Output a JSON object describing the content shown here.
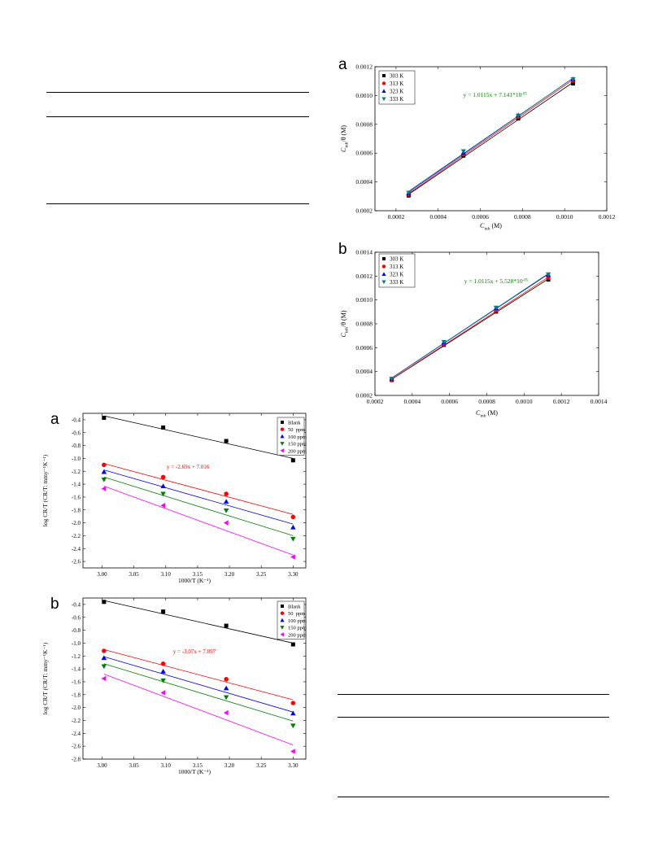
{
  "chart_data": [
    {
      "panel": "a",
      "type": "scatter",
      "xlabel": "C_inh (M)",
      "ylabel": "C_inh/θ (M)",
      "xlim": [
        0.0001,
        0.0012
      ],
      "ylim": [
        0.0002,
        0.0012
      ],
      "x_ticks": [
        "0.0002",
        "0.0004",
        "0.0006",
        "0.0008",
        "0.0010",
        "0.0012"
      ],
      "y_ticks": [
        "0.0002",
        "0.0004",
        "0.0006",
        "0.0008",
        "0.0010",
        "0.0012"
      ],
      "legend_position": "top-left",
      "fit": true,
      "x": [
        0.00026,
        0.00052,
        0.00078,
        0.00104
      ],
      "series": [
        {
          "name": "303 K",
          "marker": "square",
          "color": "#000000",
          "values": [
            0.000305,
            0.000582,
            0.00084,
            0.001083
          ]
        },
        {
          "name": "313 K",
          "marker": "circle",
          "color": "#ff0000",
          "values": [
            0.000312,
            0.000592,
            0.000852,
            0.001103
          ]
        },
        {
          "name": "323 K",
          "marker": "triangle-up",
          "color": "#0000ff",
          "values": [
            0.00032,
            0.000603,
            0.000864,
            0.001113
          ]
        },
        {
          "name": "333 K",
          "marker": "triangle-down",
          "color": "#008080",
          "values": [
            0.000325,
            0.000613,
            0.00086,
            0.001114
          ]
        }
      ],
      "annotations": [
        {
          "text": "y = 1.0115x + 7.141*10",
          "sup": "-05",
          "color": "#008000",
          "x": 0.00067,
          "y": 0.00099
        }
      ]
    },
    {
      "panel": "b",
      "type": "scatter",
      "xlabel": "C_inh (M)",
      "ylabel": "C_inh/θ (M)",
      "xlim": [
        0.0002,
        0.0014
      ],
      "ylim": [
        0.0002,
        0.0014
      ],
      "x_ticks": [
        "0.0002",
        "0.0004",
        "0.0006",
        "0.0008",
        "0.0010",
        "0.0012",
        "0.0014"
      ],
      "y_ticks": [
        "0.0002",
        "0.0004",
        "0.0006",
        "0.0008",
        "0.0010",
        "0.0012",
        "0.0014"
      ],
      "legend_position": "top-left",
      "fit": true,
      "x": [
        0.00029,
        0.00057,
        0.00085,
        0.00113
      ],
      "series": [
        {
          "name": "303 K",
          "marker": "square",
          "color": "#000000",
          "values": [
            0.000328,
            0.000623,
            0.000902,
            0.00117
          ]
        },
        {
          "name": "313 K",
          "marker": "circle",
          "color": "#ff0000",
          "values": [
            0.00033,
            0.00063,
            0.00091,
            0.001185
          ]
        },
        {
          "name": "323 K",
          "marker": "triangle-up",
          "color": "#0000ff",
          "values": [
            0.000338,
            0.000645,
            0.000932,
            0.00121
          ]
        },
        {
          "name": "333 K",
          "marker": "triangle-down",
          "color": "#008080",
          "values": [
            0.00034,
            0.000647,
            0.000935,
            0.001215
          ]
        }
      ],
      "annotations": [
        {
          "text": "y = 1.0115x + 5.528*10",
          "sup": "-05",
          "color": "#008000",
          "x": 0.00085,
          "y": 0.00114
        }
      ]
    },
    {
      "panel": "a",
      "type": "scatter",
      "xlabel": "1000/T (K⁻¹)",
      "ylabel": "log CR/T (CR/T: mmy⁻¹K⁻¹)",
      "xlim": [
        2.97,
        3.32
      ],
      "ylim": [
        -2.7,
        -0.3
      ],
      "x_ticks": [
        "3.00",
        "3.05",
        "3.10",
        "3.15",
        "3.20",
        "3.25",
        "3.30"
      ],
      "y_ticks": [
        "-0.4",
        "-0.6",
        "-0.8",
        "-1.0",
        "-1.2",
        "-1.4",
        "-1.6",
        "-1.8",
        "-2.0",
        "-2.2",
        "-2.4",
        "-2.6"
      ],
      "legend_position": "top-right",
      "fit": true,
      "x": [
        3.003,
        3.096,
        3.195,
        3.3
      ],
      "series": [
        {
          "name": "Blank",
          "marker": "square",
          "color": "#000000",
          "values": [
            -0.37,
            -0.52,
            -0.73,
            -1.03
          ],
          "fit": [
            -0.34,
            -1.0
          ]
        },
        {
          "name": "50  ppm",
          "marker": "circle",
          "color": "#ff0000",
          "values": [
            -1.1,
            -1.29,
            -1.55,
            -1.91
          ],
          "fit": [
            -1.08,
            -1.87
          ]
        },
        {
          "name": "100 ppm",
          "marker": "triangle-up",
          "color": "#0000ff",
          "values": [
            -1.21,
            -1.43,
            -1.67,
            -2.07
          ],
          "fit": [
            -1.18,
            -2.02
          ]
        },
        {
          "name": "150 ppm",
          "marker": "triangle-down",
          "color": "#008000",
          "values": [
            -1.33,
            -1.55,
            -1.81,
            -2.25
          ],
          "fit": [
            -1.29,
            -2.2
          ]
        },
        {
          "name": "200 ppm",
          "marker": "triangle-left",
          "color": "#ff00ff",
          "values": [
            -1.47,
            -1.73,
            -2.0,
            -2.53
          ],
          "fit": [
            -1.43,
            -2.5
          ]
        }
      ],
      "annotations": [
        {
          "text": "y = -2.69x + 7.016",
          "color": "#ff0000",
          "x": 3.135,
          "y": -1.16
        }
      ]
    },
    {
      "panel": "b",
      "type": "scatter",
      "xlabel": "1000/T (K⁻¹)",
      "ylabel": "log CR/T (CR/T: mmy⁻¹K⁻¹)",
      "xlim": [
        2.97,
        3.32
      ],
      "ylim": [
        -2.8,
        -0.3
      ],
      "x_ticks": [
        "3.00",
        "3.05",
        "3.10",
        "3.15",
        "3.20",
        "3.25",
        "3.30"
      ],
      "y_ticks": [
        "-0.4",
        "-0.6",
        "-0.8",
        "-1.0",
        "-1.2",
        "-1.4",
        "-1.6",
        "-1.8",
        "-2.0",
        "-2.2",
        "-2.4",
        "-2.6",
        "-2.8"
      ],
      "legend_position": "top-right",
      "fit": true,
      "x": [
        3.003,
        3.096,
        3.195,
        3.3
      ],
      "series": [
        {
          "name": "Blank",
          "marker": "square",
          "color": "#000000",
          "values": [
            -0.36,
            -0.51,
            -0.73,
            -1.02
          ],
          "fit": [
            -0.34,
            -1.0
          ]
        },
        {
          "name": "50  ppm",
          "marker": "circle",
          "color": "#ff0000",
          "values": [
            -1.12,
            -1.32,
            -1.56,
            -1.93
          ],
          "fit": [
            -1.1,
            -1.88
          ]
        },
        {
          "name": "100 ppm",
          "marker": "triangle-up",
          "color": "#0000ff",
          "values": [
            -1.23,
            -1.44,
            -1.7,
            -2.09
          ],
          "fit": [
            -1.21,
            -2.07
          ]
        },
        {
          "name": "150 ppm",
          "marker": "triangle-down",
          "color": "#008000",
          "values": [
            -1.36,
            -1.58,
            -1.84,
            -2.28
          ],
          "fit": [
            -1.32,
            -2.21
          ]
        },
        {
          "name": "200 ppm",
          "marker": "triangle-left",
          "color": "#ff00ff",
          "values": [
            -1.55,
            -1.77,
            -2.08,
            -2.68
          ],
          "fit": [
            -1.48,
            -2.58
          ]
        }
      ],
      "annotations": [
        {
          "text": "y = -3.07x + 7.897",
          "color": "#ff0000",
          "x": 3.145,
          "y": -1.16
        }
      ]
    }
  ]
}
